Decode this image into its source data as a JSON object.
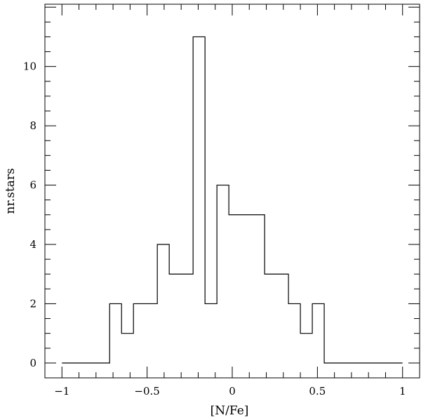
{
  "chart_data": {
    "type": "histogram",
    "xlabel": "[N/Fe]",
    "ylabel": "nr.stars",
    "xlim": [
      -1.1,
      1.1
    ],
    "ylim": [
      -0.5,
      12.1
    ],
    "xticks": [
      -1,
      -0.5,
      0,
      0.5,
      1
    ],
    "xtick_labels": [
      "−1",
      "−0.5",
      "0",
      "0.5",
      "1"
    ],
    "yticks": [
      0,
      2,
      4,
      6,
      8,
      10
    ],
    "ytick_labels": [
      "0",
      "2",
      "4",
      "6",
      "8",
      "10"
    ],
    "grid": false,
    "bins": [
      {
        "x0": -1.0,
        "x1": -0.72,
        "count": 0
      },
      {
        "x0": -0.72,
        "x1": -0.65,
        "count": 2
      },
      {
        "x0": -0.65,
        "x1": -0.58,
        "count": 1
      },
      {
        "x0": -0.58,
        "x1": -0.44,
        "count": 2
      },
      {
        "x0": -0.44,
        "x1": -0.37,
        "count": 4
      },
      {
        "x0": -0.37,
        "x1": -0.23,
        "count": 3
      },
      {
        "x0": -0.23,
        "x1": -0.16,
        "count": 11
      },
      {
        "x0": -0.16,
        "x1": -0.09,
        "count": 2
      },
      {
        "x0": -0.09,
        "x1": -0.02,
        "count": 6
      },
      {
        "x0": -0.02,
        "x1": 0.19,
        "count": 5
      },
      {
        "x0": 0.19,
        "x1": 0.33,
        "count": 3
      },
      {
        "x0": 0.33,
        "x1": 0.4,
        "count": 2
      },
      {
        "x0": 0.4,
        "x1": 0.47,
        "count": 1
      },
      {
        "x0": 0.47,
        "x1": 0.54,
        "count": 2
      },
      {
        "x0": 0.54,
        "x1": 1.0,
        "count": 0
      }
    ]
  }
}
